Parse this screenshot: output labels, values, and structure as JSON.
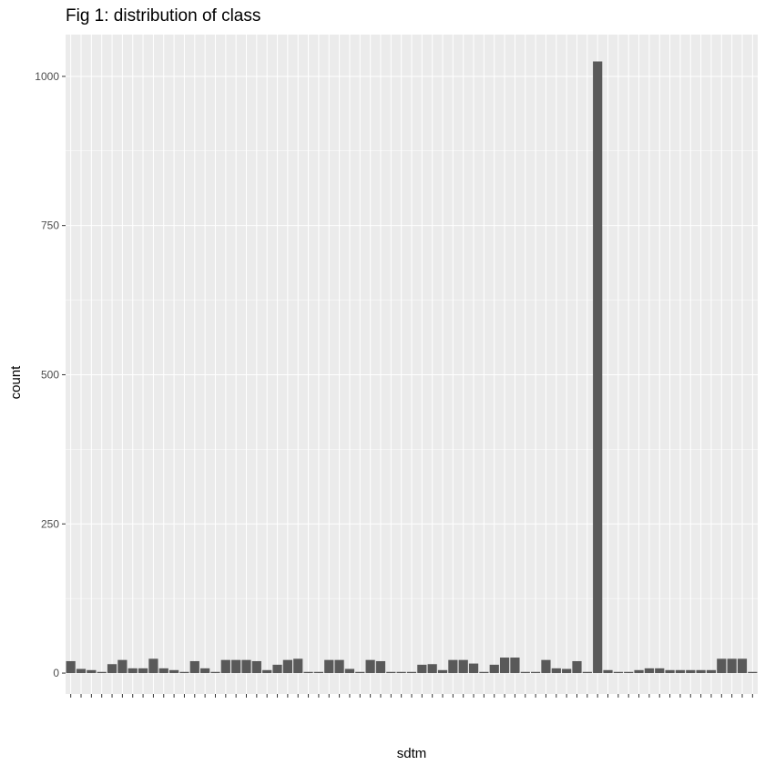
{
  "chart_data": {
    "type": "bar",
    "title": "Fig 1: distribution of class",
    "xlabel": "sdtm",
    "ylabel": "count",
    "ylim": [
      -35,
      1070
    ],
    "yticks": [
      0,
      250,
      500,
      750,
      1000
    ],
    "grid": true,
    "background": "#ebebeb",
    "grid_color": "#ffffff",
    "bar_color": "#595959",
    "values": [
      20,
      7,
      5,
      2,
      15,
      22,
      8,
      8,
      24,
      8,
      5,
      2,
      20,
      8,
      2,
      22,
      22,
      22,
      20,
      5,
      14,
      22,
      24,
      2,
      2,
      22,
      22,
      7,
      2,
      22,
      20,
      2,
      2,
      2,
      14,
      15,
      5,
      22,
      22,
      16,
      2,
      14,
      26,
      26,
      2,
      2,
      22,
      8,
      7,
      20,
      2,
      1025,
      5,
      2,
      2,
      5,
      8,
      8,
      5,
      5,
      5,
      5,
      5,
      24,
      24,
      24,
      2
    ]
  }
}
